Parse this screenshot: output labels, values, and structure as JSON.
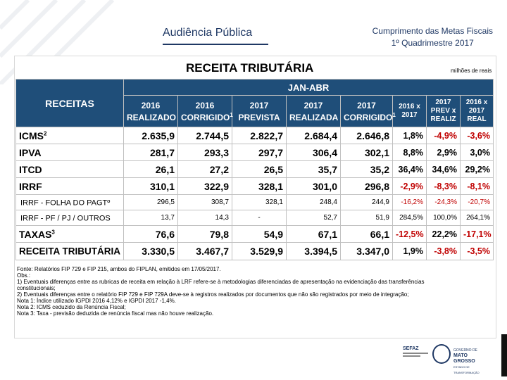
{
  "header": {
    "left_title": "Audiência Pública",
    "right_line1": "Cumprimento das Metas Fiscais",
    "right_line2": "1º Quadrimestre 2017"
  },
  "slide": {
    "title": "RECEITA TRIBUTÁRIA",
    "units": "milhões de reais"
  },
  "table": {
    "receitas_label": "RECEITAS",
    "period_label": "JAN-ABR",
    "columns": [
      {
        "l1": "2016",
        "l2": "REALIZADO",
        "sup": ""
      },
      {
        "l1": "2016",
        "l2": "CORRIGIDO",
        "sup": "1"
      },
      {
        "l1": "2017",
        "l2": "PREVISTA",
        "sup": ""
      },
      {
        "l1": "2017",
        "l2": "REALIZADA",
        "sup": ""
      },
      {
        "l1": "2017",
        "l2": "CORRIGIDO",
        "sup": "1"
      }
    ],
    "pct_columns": [
      {
        "l1": "2016 x",
        "l2": "2017",
        "l3": ""
      },
      {
        "l1": "2017",
        "l2": "PREV x",
        "l3": "REALIZ"
      },
      {
        "l1": "2016 x",
        "l2": "2017",
        "l3": "REAL"
      }
    ],
    "rows": [
      {
        "label": "ICMS",
        "sup": "2",
        "values": [
          "2.635,9",
          "2.744,5",
          "2.822,7",
          "2.684,4",
          "2.646,8"
        ],
        "pcts": [
          "1,8%",
          "-4,9%",
          "-3,6%"
        ]
      },
      {
        "label": "IPVA",
        "sup": "",
        "values": [
          "281,7",
          "293,3",
          "297,7",
          "306,4",
          "302,1"
        ],
        "pcts": [
          "8,8%",
          "2,9%",
          "3,0%"
        ]
      },
      {
        "label": "ITCD",
        "sup": "",
        "values": [
          "26,1",
          "27,2",
          "26,5",
          "35,7",
          "35,2"
        ],
        "pcts": [
          "36,4%",
          "34,6%",
          "29,2%"
        ]
      },
      {
        "label": "IRRF",
        "sup": "",
        "values": [
          "310,1",
          "322,9",
          "328,1",
          "301,0",
          "296,8"
        ],
        "pcts": [
          "-2,9%",
          "-8,3%",
          "-8,1%"
        ]
      },
      {
        "label": "IRRF - FOLHA DO PAGTº",
        "sup": "",
        "values": [
          "296,5",
          "308,7",
          "328,1",
          "248,4",
          "244,9"
        ],
        "pcts": [
          "-16,2%",
          "-24,3%",
          "-20,7%"
        ]
      },
      {
        "label": "IRRF - PF / PJ / OUTROS",
        "sup": "",
        "values": [
          "13,7",
          "14,3",
          "-",
          "52,7",
          "51,9"
        ],
        "pcts": [
          "284,5%",
          "100,0%",
          "264,1%"
        ]
      },
      {
        "label": "TAXAS",
        "sup": "3",
        "values": [
          "76,6",
          "79,8",
          "54,9",
          "67,1",
          "66,1"
        ],
        "pcts": [
          "-12,5%",
          "22,2%",
          "-17,1%"
        ]
      },
      {
        "label": "RECEITA TRIBUTÁRIA",
        "sup": "",
        "values": [
          "3.330,5",
          "3.467,7",
          "3.529,9",
          "3.394,5",
          "3.347,0"
        ],
        "pcts": [
          "1,9%",
          "-3,8%",
          "-3,5%"
        ]
      }
    ]
  },
  "notes": [
    "Fonte: Relatórios FIP 729 e FIP 215, ambos do FIPLAN, emitidos em 17/05/2017.",
    "Obs.:",
    "1) Eventuais diferenças entre as rubricas de receita em relação à LRF refere-se à metodologias diferenciadas de apresentação na evidenciação das transferências",
    "constitucionais;",
    "2) Eventuais diferenças entre o relatório FIP 729 e FIP 729A deve-se à registros realizados por documentos que não são registrados por meio de integração;",
    "Nota 1: Índice utilizado IGPDI 2016 4,12% e IGPDI 2017 -1,4%.",
    "Nota 2: ICMS ceduzido da Renúncia Fiscal;",
    "Nota 3: Taxa - previsão deduzida de renúncia fiscal mas não houve realização."
  ],
  "footer": {
    "sefaz": "SEFAZ",
    "state_line1": "GOVERNO DE",
    "state_line2": "MATO GROSSO",
    "state_line3": "ESTADO DE TRANSFORMAÇÃO",
    "negative_color": "#c00000",
    "header_color": "#1f4e79"
  }
}
